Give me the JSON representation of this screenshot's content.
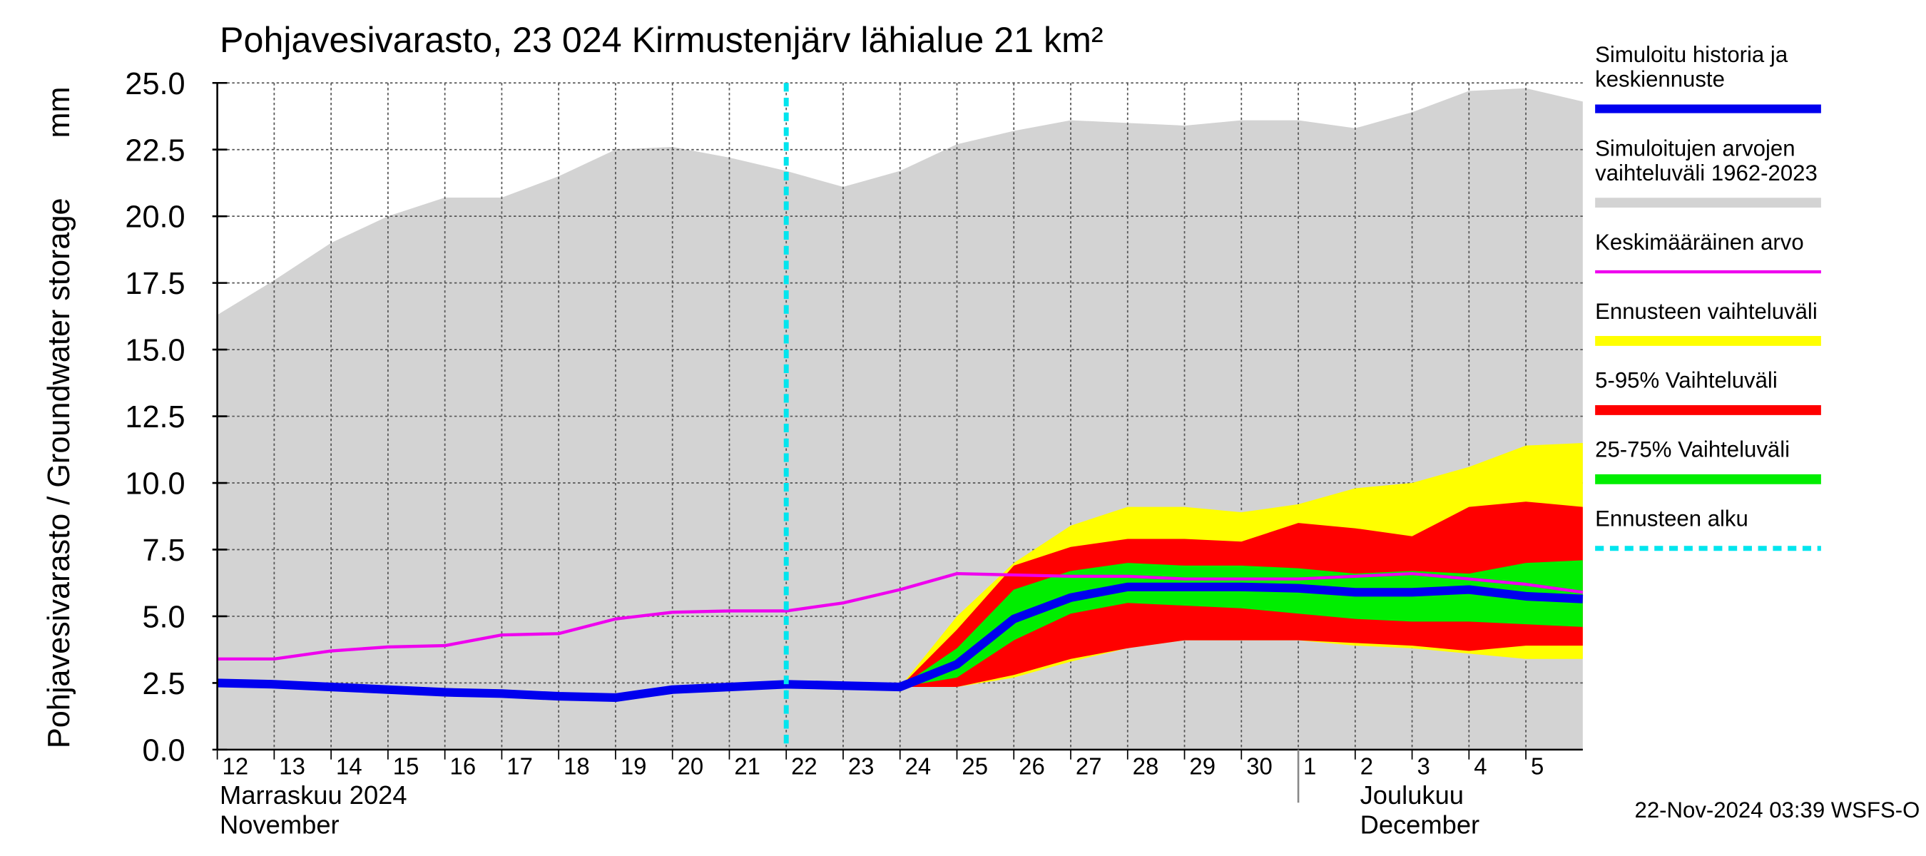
{
  "chart_data": {
    "type": "area-band",
    "title": "Pohjavesivarasto, 23 024 Kirmustenjärv lähialue 21 km²",
    "ylabel": "Pohjavesivarasto / Groundwater storage",
    "yunit": "mm",
    "timestamp": "22-Nov-2024 03:39 WSFS-O",
    "x": [
      0,
      1,
      2,
      3,
      4,
      5,
      6,
      7,
      8,
      9,
      10,
      11,
      12,
      13,
      14,
      15,
      16,
      17,
      18,
      19,
      20,
      21,
      22,
      23,
      24
    ],
    "xlim": [
      0,
      24
    ],
    "xticks": [
      {
        "value": 0,
        "label": "12"
      },
      {
        "value": 1,
        "label": "13"
      },
      {
        "value": 2,
        "label": "14"
      },
      {
        "value": 3,
        "label": "15"
      },
      {
        "value": 4,
        "label": "16"
      },
      {
        "value": 5,
        "label": "17"
      },
      {
        "value": 6,
        "label": "18"
      },
      {
        "value": 7,
        "label": "19"
      },
      {
        "value": 8,
        "label": "20"
      },
      {
        "value": 9,
        "label": "21"
      },
      {
        "value": 10,
        "label": "22"
      },
      {
        "value": 11,
        "label": "23"
      },
      {
        "value": 12,
        "label": "24"
      },
      {
        "value": 13,
        "label": "25"
      },
      {
        "value": 14,
        "label": "26"
      },
      {
        "value": 15,
        "label": "27"
      },
      {
        "value": 16,
        "label": "28"
      },
      {
        "value": 17,
        "label": "29"
      },
      {
        "value": 18,
        "label": "30"
      },
      {
        "value": 19,
        "label": "1"
      },
      {
        "value": 20,
        "label": "2"
      },
      {
        "value": 21,
        "label": "3"
      },
      {
        "value": 22,
        "label": "4"
      },
      {
        "value": 23,
        "label": "5"
      }
    ],
    "months": [
      {
        "x": 0,
        "fi": "Marraskuu 2024",
        "en": "November"
      },
      {
        "x": 19,
        "fi": "Joulukuu",
        "en": "December"
      }
    ],
    "ylim": [
      0,
      25
    ],
    "yticks": [
      {
        "value": 0,
        "label": "0.0"
      },
      {
        "value": 2.5,
        "label": "2.5"
      },
      {
        "value": 5,
        "label": "5.0"
      },
      {
        "value": 7.5,
        "label": "7.5"
      },
      {
        "value": 10,
        "label": "10.0"
      },
      {
        "value": 12.5,
        "label": "12.5"
      },
      {
        "value": 15,
        "label": "15.0"
      },
      {
        "value": 17.5,
        "label": "17.5"
      },
      {
        "value": 20,
        "label": "20.0"
      },
      {
        "value": 22.5,
        "label": "22.5"
      },
      {
        "value": 25,
        "label": "25.0"
      }
    ],
    "grid": true,
    "series": [
      {
        "name": "Simuloitu historia ja\nkeskiennuste",
        "color": "#0000ee",
        "kind": "line",
        "width": 7,
        "values": [
          2.5,
          2.45,
          2.35,
          2.25,
          2.15,
          2.1,
          2.0,
          1.95,
          2.25,
          2.35,
          2.45,
          2.4,
          2.35,
          3.2,
          4.9,
          5.7,
          6.1,
          6.1,
          6.1,
          6.05,
          5.9,
          5.9,
          6.0,
          5.75,
          5.65
        ]
      },
      {
        "name": "Simuloitujen arvojen\nvaihteluväli 1962-2023",
        "color": "#d3d3d3",
        "kind": "band",
        "lower": [
          0,
          0,
          0,
          0,
          0,
          0,
          0,
          0,
          0,
          0,
          0,
          0,
          0,
          0,
          0,
          0,
          0,
          0,
          0,
          0,
          0,
          0,
          0,
          0,
          0
        ],
        "upper": [
          16.3,
          17.6,
          19.0,
          20.0,
          20.7,
          20.7,
          21.5,
          22.5,
          22.6,
          22.2,
          21.7,
          21.1,
          21.7,
          22.7,
          23.2,
          23.6,
          23.5,
          23.4,
          23.6,
          23.6,
          23.3,
          23.9,
          24.7,
          24.8,
          24.3
        ]
      },
      {
        "name": "Keskimääräinen arvo",
        "color": "#ee00ee",
        "kind": "line",
        "width": 2.5,
        "values": [
          3.4,
          3.4,
          3.7,
          3.85,
          3.9,
          4.3,
          4.35,
          4.9,
          5.15,
          5.2,
          5.2,
          5.5,
          6.0,
          6.6,
          6.55,
          6.5,
          6.5,
          6.4,
          6.4,
          6.4,
          6.5,
          6.6,
          6.4,
          6.2,
          5.9
        ]
      },
      {
        "name": "Ennusteen vaihteluväli",
        "color": "#ffff00",
        "kind": "band",
        "lower": [
          null,
          null,
          null,
          null,
          null,
          null,
          null,
          null,
          null,
          null,
          null,
          null,
          2.35,
          2.35,
          2.7,
          3.3,
          3.8,
          4.1,
          4.1,
          4.1,
          3.9,
          3.8,
          3.6,
          3.4,
          3.4
        ],
        "upper": [
          null,
          null,
          null,
          null,
          null,
          null,
          null,
          null,
          null,
          null,
          null,
          null,
          2.35,
          5.0,
          7.0,
          8.4,
          9.1,
          9.1,
          8.9,
          9.2,
          9.8,
          10.0,
          10.6,
          11.4,
          11.5
        ]
      },
      {
        "name": "5-95% Vaihteluväli",
        "color": "#ff0000",
        "kind": "band",
        "lower": [
          null,
          null,
          null,
          null,
          null,
          null,
          null,
          null,
          null,
          null,
          null,
          null,
          2.35,
          2.35,
          2.8,
          3.4,
          3.8,
          4.1,
          4.1,
          4.1,
          4.0,
          3.9,
          3.7,
          3.9,
          3.9
        ],
        "upper": [
          null,
          null,
          null,
          null,
          null,
          null,
          null,
          null,
          null,
          null,
          null,
          null,
          2.35,
          4.5,
          6.9,
          7.6,
          7.9,
          7.9,
          7.8,
          8.5,
          8.3,
          8.0,
          9.1,
          9.3,
          9.1
        ]
      },
      {
        "name": "25-75% Vaihteluväli",
        "color": "#00ee00",
        "kind": "band",
        "lower": [
          null,
          null,
          null,
          null,
          null,
          null,
          null,
          null,
          null,
          null,
          null,
          null,
          2.35,
          2.7,
          4.1,
          5.1,
          5.5,
          5.4,
          5.3,
          5.1,
          4.9,
          4.8,
          4.8,
          4.7,
          4.6
        ],
        "upper": [
          null,
          null,
          null,
          null,
          null,
          null,
          null,
          null,
          null,
          null,
          null,
          null,
          2.35,
          3.8,
          6.0,
          6.7,
          7.0,
          6.9,
          6.9,
          6.8,
          6.6,
          6.7,
          6.6,
          7.0,
          7.1
        ]
      }
    ],
    "forecast_start": {
      "name": "Ennusteen alku",
      "x": 10,
      "color": "#00e5ee"
    },
    "draw_order": [
      1,
      3,
      4,
      5,
      2,
      0
    ],
    "legend_order": [
      0,
      1,
      2,
      3,
      4,
      5
    ]
  }
}
